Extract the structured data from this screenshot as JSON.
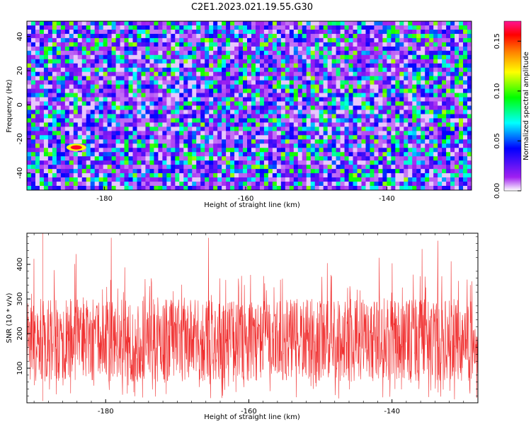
{
  "title": "C2E1.2023.021.19.55.G30",
  "chart_data": [
    {
      "type": "heatmap",
      "xlabel": "Height of straight line (km)",
      "ylabel": "Frequency (Hz)",
      "xlim": [
        -191,
        -128
      ],
      "ylim": [
        -50,
        49
      ],
      "x_ticks": [
        -180,
        -160,
        -140
      ],
      "y_ticks": [
        -40,
        -20,
        0,
        20,
        40
      ],
      "colorbar": {
        "label": "Normalized spectral amplitude",
        "range": [
          0.0,
          0.17
        ],
        "ticks": [
          "0.00",
          "0.05",
          "0.10",
          "0.15"
        ],
        "colormap": [
          "#ffffff",
          "#a020f0",
          "#0000ff",
          "#00ffff",
          "#00ff00",
          "#ffff00",
          "#ff8000",
          "#ff0000",
          "#ff1493"
        ]
      },
      "peak": {
        "x": -184,
        "y": -25,
        "value": 0.16
      },
      "grid": false
    },
    {
      "type": "line",
      "xlabel": "Height of straight line (km)",
      "ylabel": "SNR (10 * v/v)",
      "xlim": [
        -191,
        -128
      ],
      "ylim": [
        0,
        490
      ],
      "x_ticks": [
        -180,
        -160,
        -140
      ],
      "y_ticks": [
        100,
        200,
        300,
        400
      ],
      "series_color": "#f03030",
      "typical_range": [
        60,
        300
      ],
      "max_value": 490,
      "grid": false
    }
  ]
}
